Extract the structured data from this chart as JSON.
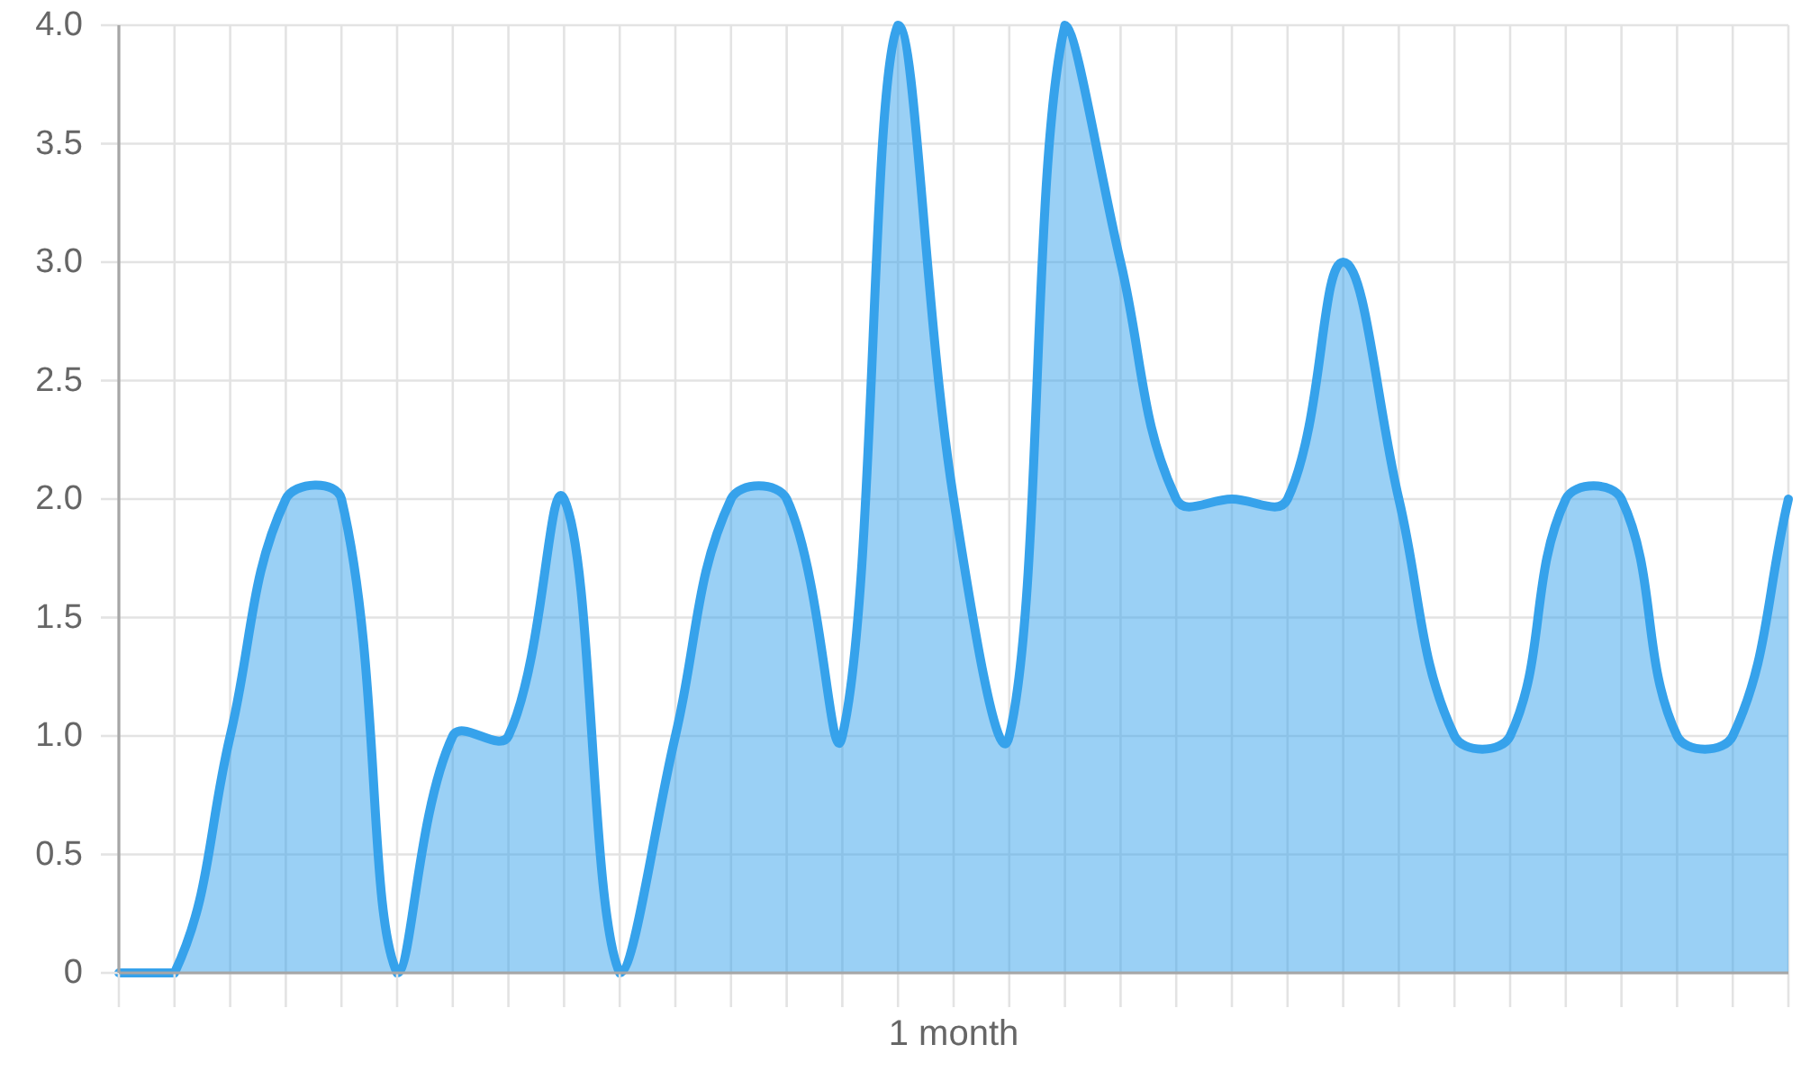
{
  "chart_data": {
    "type": "area",
    "xlabel": "1 month",
    "categories": [
      null,
      null,
      null,
      null,
      null,
      null,
      null,
      null,
      null,
      null,
      null,
      null,
      null,
      null,
      null,
      null,
      null,
      null,
      null,
      null,
      null,
      null,
      null,
      null,
      null,
      null,
      null,
      null,
      null,
      null,
      null
    ],
    "values": [
      0,
      0,
      1,
      2,
      2,
      0,
      1,
      1,
      2,
      0,
      1,
      2,
      2,
      1,
      4,
      2,
      1,
      4,
      3,
      2,
      2,
      2,
      3,
      2,
      1,
      1,
      2,
      2,
      1,
      1,
      2
    ],
    "color": "#36a2eb",
    "ylim": [
      0,
      4
    ],
    "yticks": [
      0,
      0.5,
      {
        "value": 1,
        "label": "1.0"
      },
      1.5,
      {
        "value": 2,
        "label": "2.0"
      },
      2.5,
      {
        "value": 3,
        "label": "3.0"
      },
      3.5,
      {
        "value": 4,
        "label": "4.0"
      }
    ],
    "grid": true,
    "tick_labels": "y"
  }
}
